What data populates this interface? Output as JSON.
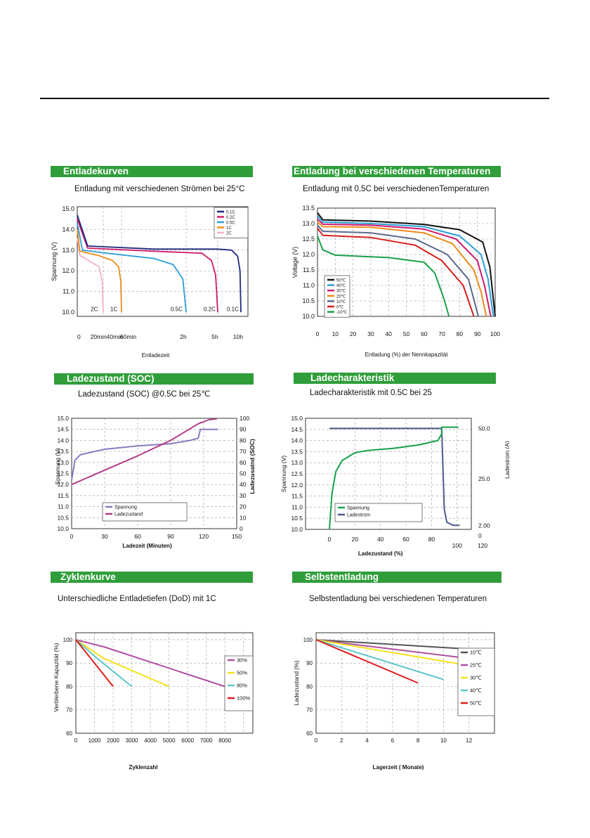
{
  "chart_data": [
    {
      "id": "discharge",
      "type": "line",
      "section": "Entladekurven",
      "title": "Entladung mit verschiedenen Strömen bei 25°C",
      "xlabel": "Entladezeit",
      "ylabel": "Spannung (V)",
      "x_tick_labels": [
        "0",
        "20min",
        "40min",
        "60min",
        "2h",
        "5h",
        "10h"
      ],
      "y_ticks": [
        "15.0",
        "14.0",
        "13.0",
        "12.0",
        "11.0",
        "10.0"
      ],
      "ylim": [
        9.8,
        15.1
      ],
      "grid": true,
      "legend_position": "top-right",
      "colors": [
        "#1f2a7a",
        "#d01a6d",
        "#2a9fd8",
        "#ee8a1a",
        "#f3b3c0"
      ],
      "series": [
        {
          "name": "0.1C",
          "label": "0.1C",
          "points": [
            [
              0,
              14.7
            ],
            [
              0.2,
              13.2
            ],
            [
              1.5,
              13.05
            ],
            [
              5,
              13.05
            ],
            [
              8,
              13.0
            ],
            [
              9.3,
              12.7
            ],
            [
              9.8,
              12.0
            ],
            [
              10,
              10.0
            ]
          ]
        },
        {
          "name": "0.2C",
          "label": "0.2C",
          "points": [
            [
              0,
              14.5
            ],
            [
              0.2,
              13.1
            ],
            [
              1.5,
              12.95
            ],
            [
              3.5,
              12.85
            ],
            [
              4.4,
              12.5
            ],
            [
              4.8,
              11.8
            ],
            [
              5,
              10.0
            ]
          ]
        },
        {
          "name": "0.5C",
          "label": "0.5C",
          "points": [
            [
              0,
              14.3
            ],
            [
              0.1,
              13.0
            ],
            [
              0.6,
              12.85
            ],
            [
              1.5,
              12.6
            ],
            [
              1.8,
              12.3
            ],
            [
              1.95,
              11.6
            ],
            [
              2,
              10.0
            ]
          ]
        },
        {
          "name": "1C",
          "label": "1C",
          "points": [
            [
              0,
              14.0
            ],
            [
              0.05,
              12.95
            ],
            [
              0.4,
              12.75
            ],
            [
              0.75,
              12.5
            ],
            [
              0.92,
              12.2
            ],
            [
              0.98,
              11.5
            ],
            [
              1,
              10.0
            ]
          ]
        },
        {
          "name": "2C",
          "label": "2C",
          "points": [
            [
              0,
              13.6
            ],
            [
              0.05,
              12.75
            ],
            [
              0.25,
              12.45
            ],
            [
              0.42,
              12.2
            ],
            [
              0.48,
              11.5
            ],
            [
              0.5,
              10.0
            ]
          ]
        }
      ]
    },
    {
      "id": "temperature",
      "type": "line",
      "section": "Entladung bei verschiedenen Temperaturen",
      "title": "Entladung mit 0,5C bei verschiedenenTemperaturen",
      "xlabel": "Entladung (%) der Nennkapazität",
      "ylabel": "Voltage (V)",
      "x_ticks": [
        0,
        10,
        20,
        30,
        40,
        50,
        60,
        70,
        80,
        90,
        100
      ],
      "y_ticks": [
        "13.5",
        "13.0",
        "12.5",
        "12.0",
        "11.5",
        "11.0",
        "10.5",
        "10.0"
      ],
      "xlim": [
        0,
        100
      ],
      "ylim": [
        10.0,
        13.5
      ],
      "grid": true,
      "legend_position": "bottom-left",
      "colors": [
        "#111111",
        "#2a9fd8",
        "#d01a6d",
        "#ee8a1a",
        "#5a6a8a",
        "#d81e1e",
        "#17a04a"
      ],
      "series": [
        {
          "name": "50℃",
          "points": [
            [
              0,
              13.35
            ],
            [
              3,
              13.12
            ],
            [
              30,
              13.08
            ],
            [
              60,
              12.97
            ],
            [
              80,
              12.8
            ],
            [
              93,
              12.4
            ],
            [
              97,
              11.6
            ],
            [
              100,
              10.0
            ]
          ]
        },
        {
          "name": "40℃",
          "points": [
            [
              0,
              13.25
            ],
            [
              3,
              13.05
            ],
            [
              30,
              13.0
            ],
            [
              60,
              12.9
            ],
            [
              80,
              12.6
            ],
            [
              92,
              12.0
            ],
            [
              96,
              11.2
            ],
            [
              99,
              10.0
            ]
          ]
        },
        {
          "name": "30℃",
          "points": [
            [
              0,
              13.15
            ],
            [
              3,
              12.98
            ],
            [
              30,
              12.95
            ],
            [
              60,
              12.82
            ],
            [
              78,
              12.5
            ],
            [
              90,
              11.8
            ],
            [
              94,
              11.0
            ],
            [
              97.5,
              10.0
            ]
          ]
        },
        {
          "name": "20℃",
          "points": [
            [
              0,
              13.05
            ],
            [
              3,
              12.9
            ],
            [
              30,
              12.88
            ],
            [
              60,
              12.7
            ],
            [
              76,
              12.35
            ],
            [
              88,
              11.5
            ],
            [
              92,
              10.8
            ],
            [
              95,
              10.0
            ]
          ]
        },
        {
          "name": "10℃",
          "points": [
            [
              0,
              12.95
            ],
            [
              3,
              12.75
            ],
            [
              30,
              12.7
            ],
            [
              55,
              12.5
            ],
            [
              73,
              12.0
            ],
            [
              85,
              11.2
            ],
            [
              90.5,
              10.0
            ]
          ]
        },
        {
          "name": "0℃",
          "points": [
            [
              0,
              12.85
            ],
            [
              3,
              12.62
            ],
            [
              30,
              12.55
            ],
            [
              55,
              12.3
            ],
            [
              70,
              11.8
            ],
            [
              82,
              11.0
            ],
            [
              88,
              10.0
            ]
          ]
        },
        {
          "name": "-10℃",
          "points": [
            [
              0,
              12.6
            ],
            [
              3,
              12.15
            ],
            [
              10,
              11.98
            ],
            [
              40,
              11.9
            ],
            [
              60,
              11.75
            ],
            [
              66,
              11.4
            ],
            [
              71,
              10.6
            ],
            [
              74,
              10.0
            ]
          ]
        }
      ]
    },
    {
      "id": "soc",
      "type": "line",
      "section": "Ladezustand (SOC)",
      "title": "Ladezustand (SOC) @0.5C bei 25℃",
      "xlabel": "Ladezeit (Minuten)",
      "ylabel_left": "Spannung (V)",
      "ylabel_right": "Ladezusatnd (SOC)",
      "x_ticks": [
        0,
        30,
        60,
        90,
        120,
        150
      ],
      "y_ticks_left": [
        "15.0",
        "14.5",
        "14.0",
        "13.5",
        "13.0",
        "12.5",
        "12.0",
        "11.5",
        "11.0",
        "10.5",
        "10.0"
      ],
      "y_ticks_right": [
        100,
        90,
        80,
        70,
        60,
        50,
        40,
        30,
        20,
        10,
        0
      ],
      "xlim": [
        0,
        150
      ],
      "ylim_left": [
        10.0,
        15.0
      ],
      "ylim_right": [
        0,
        100
      ],
      "grid": true,
      "legend_position": "bottom-center",
      "colors": [
        "#8a7ac0",
        "#b33d86"
      ],
      "series": [
        {
          "name": "Spannung",
          "axis": "left",
          "points": [
            [
              0,
              12.2
            ],
            [
              3,
              13.1
            ],
            [
              8,
              13.35
            ],
            [
              30,
              13.6
            ],
            [
              60,
              13.75
            ],
            [
              90,
              13.85
            ],
            [
              108,
              14.0
            ],
            [
              115,
              14.1
            ],
            [
              117,
              14.5
            ],
            [
              133,
              14.5
            ]
          ]
        },
        {
          "name": "Ladezustand",
          "axis": "right",
          "points": [
            [
              0,
              40
            ],
            [
              30,
              53
            ],
            [
              60,
              66
            ],
            [
              90,
              80
            ],
            [
              105,
              89
            ],
            [
              115,
              95
            ],
            [
              125,
              98.7
            ],
            [
              132,
              99.5
            ]
          ]
        }
      ]
    },
    {
      "id": "charge",
      "type": "line",
      "section": "Ladecharakteristik",
      "title": "Ladecharakteristik mit 0.5C bei 25",
      "xlabel": "Ladezustand (%)",
      "ylabel_left": "Spannung (V)",
      "ylabel_right": "Ladestrom (A)",
      "x_ticks": [
        0,
        20,
        40,
        60,
        80,
        100,
        120
      ],
      "y_ticks_left": [
        "15.0",
        "14.5",
        "14.0",
        "13.5",
        "13.0",
        "12.5",
        "12.0",
        "11.5",
        "11.0",
        "10.5",
        "10.0"
      ],
      "y_ticks_right": [
        "50.0",
        "25.0",
        "2.00",
        "0"
      ],
      "xlim": [
        0,
        120
      ],
      "ylim_left": [
        10.0,
        15.0
      ],
      "ylim_right": [
        0,
        55
      ],
      "grid": true,
      "legend_position": "bottom-center",
      "colors": [
        "#17a04a",
        "#4a5a8a"
      ],
      "series": [
        {
          "name": "Spannung",
          "axis": "left",
          "points": [
            [
              0,
              10.0
            ],
            [
              2,
              11.6
            ],
            [
              5,
              12.6
            ],
            [
              10,
              13.1
            ],
            [
              20,
              13.45
            ],
            [
              30,
              13.55
            ],
            [
              50,
              13.65
            ],
            [
              70,
              13.8
            ],
            [
              85,
              14.0
            ],
            [
              88,
              14.3
            ],
            [
              88,
              14.6
            ],
            [
              101,
              14.6
            ]
          ]
        },
        {
          "name": "Ladestrom",
          "axis": "right",
          "points": [
            [
              0,
              50
            ],
            [
              88,
              50
            ],
            [
              89,
              30
            ],
            [
              90,
              10
            ],
            [
              92,
              3.5
            ],
            [
              97,
              2.0
            ],
            [
              102,
              2.0
            ]
          ]
        }
      ]
    },
    {
      "id": "cycles",
      "type": "line",
      "section": "Zyklenkurve",
      "title": "Unterschiedliche Entladetiefen (DoD) mit 1C",
      "xlabel": "Zyklenzahl",
      "ylabel": "Verbleibene Kapazität (%)",
      "x_ticks": [
        0,
        1000,
        2000,
        3000,
        4000,
        5000,
        6000,
        7000,
        8000
      ],
      "y_ticks": [
        100,
        90,
        80,
        70,
        60
      ],
      "xlim": [
        0,
        9500
      ],
      "ylim": [
        60,
        103
      ],
      "grid": true,
      "legend_position": "right",
      "colors": [
        "#b04ea0",
        "#f5e11a",
        "#5fc6c9",
        "#e01b1b"
      ],
      "series": [
        {
          "name": "30%",
          "points": [
            [
              0,
              100
            ],
            [
              1500,
              97
            ],
            [
              8000,
              80
            ]
          ]
        },
        {
          "name": "50%",
          "points": [
            [
              0,
              100
            ],
            [
              1500,
              92
            ],
            [
              5000,
              80
            ]
          ]
        },
        {
          "name": "80%",
          "points": [
            [
              0,
              100
            ],
            [
              1000,
              93
            ],
            [
              3000,
              80
            ]
          ]
        },
        {
          "name": "100%",
          "points": [
            [
              0,
              100
            ],
            [
              2000,
              80
            ]
          ]
        }
      ]
    },
    {
      "id": "selfdischarge",
      "type": "line",
      "section": "Selbstentladung",
      "title": "Selbstentladung bei verschiedenen Temperaturen",
      "xlabel": "Lagerzeit ( Monate)",
      "ylabel": "Ladezustand (%)",
      "x_ticks": [
        0,
        2,
        4,
        6,
        8,
        10,
        12
      ],
      "y_ticks": [
        100,
        90,
        80,
        70,
        60
      ],
      "xlim": [
        0,
        14
      ],
      "ylim": [
        60,
        103
      ],
      "grid": true,
      "legend_position": "right",
      "colors": [
        "#555555",
        "#b04ea0",
        "#f5e11a",
        "#5fc6c9",
        "#e01b1b"
      ],
      "series": [
        {
          "name": "10℃",
          "points": [
            [
              0,
              100
            ],
            [
              12,
              96
            ]
          ]
        },
        {
          "name": "25℃",
          "points": [
            [
              0,
              100
            ],
            [
              12,
              92
            ]
          ]
        },
        {
          "name": "30℃",
          "points": [
            [
              0,
              100
            ],
            [
              12,
              89
            ]
          ]
        },
        {
          "name": "40℃",
          "points": [
            [
              0,
              100
            ],
            [
              10,
              83
            ]
          ]
        },
        {
          "name": "50℃",
          "points": [
            [
              0,
              100
            ],
            [
              8,
              81.5
            ]
          ]
        }
      ]
    }
  ]
}
